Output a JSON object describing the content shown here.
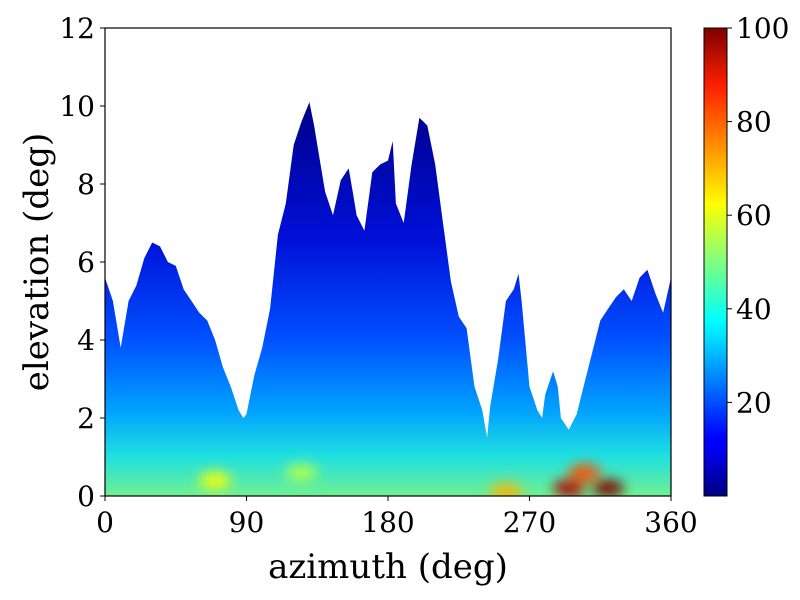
{
  "chart_data": {
    "type": "heatmap",
    "title": "",
    "xlabel": "azimuth (deg)",
    "ylabel": "elevation (deg)",
    "xlim": [
      0,
      360
    ],
    "ylim": [
      0,
      12
    ],
    "xticks": [
      0,
      90,
      180,
      270,
      360
    ],
    "yticks": [
      0,
      2,
      4,
      6,
      8,
      10,
      12
    ],
    "colorbar": {
      "range": [
        0,
        100
      ],
      "ticks": [
        20,
        40,
        60,
        80,
        100
      ],
      "colormap": "jet"
    },
    "horizon_profile": {
      "azimuth": [
        0,
        5,
        10,
        15,
        20,
        25,
        30,
        35,
        40,
        45,
        50,
        55,
        60,
        65,
        70,
        75,
        80,
        85,
        88,
        90,
        92,
        95,
        100,
        105,
        110,
        115,
        120,
        125,
        130,
        133,
        135,
        140,
        145,
        150,
        155,
        158,
        160,
        165,
        170,
        175,
        180,
        183,
        185,
        190,
        195,
        200,
        205,
        210,
        215,
        220,
        225,
        230,
        235,
        240,
        243,
        245,
        250,
        255,
        260,
        263,
        265,
        270,
        275,
        278,
        280,
        285,
        288,
        290,
        295,
        300,
        305,
        310,
        315,
        320,
        325,
        330,
        335,
        340,
        345,
        350,
        355,
        360
      ],
      "elevation": [
        5.6,
        5.0,
        3.8,
        5.0,
        5.4,
        6.1,
        6.5,
        6.4,
        6.0,
        5.9,
        5.3,
        5.0,
        4.7,
        4.5,
        4.0,
        3.3,
        2.8,
        2.2,
        2.0,
        2.1,
        2.5,
        3.1,
        3.8,
        4.8,
        6.7,
        7.5,
        9.0,
        9.6,
        10.1,
        9.5,
        9.0,
        7.8,
        7.2,
        8.1,
        8.4,
        7.7,
        7.2,
        6.8,
        8.3,
        8.5,
        8.6,
        9.1,
        7.5,
        7.0,
        8.5,
        9.7,
        9.5,
        8.5,
        7.0,
        5.5,
        4.6,
        4.3,
        2.8,
        2.2,
        1.5,
        2.3,
        3.5,
        5.0,
        5.3,
        5.7,
        5.0,
        2.8,
        2.2,
        2.0,
        2.6,
        3.2,
        2.8,
        2.0,
        1.7,
        2.1,
        2.9,
        3.7,
        4.5,
        4.8,
        5.1,
        5.3,
        5.0,
        5.6,
        5.8,
        5.2,
        4.7,
        5.6
      ]
    },
    "hotspots": [
      {
        "azimuth": 70,
        "elevation": 0.4,
        "value": 62
      },
      {
        "azimuth": 125,
        "elevation": 0.6,
        "value": 55
      },
      {
        "azimuth": 255,
        "elevation": 0.1,
        "value": 70
      },
      {
        "azimuth": 295,
        "elevation": 0.2,
        "value": 95
      },
      {
        "azimuth": 320,
        "elevation": 0.2,
        "value": 100
      },
      {
        "azimuth": 305,
        "elevation": 0.6,
        "value": 80
      }
    ]
  }
}
